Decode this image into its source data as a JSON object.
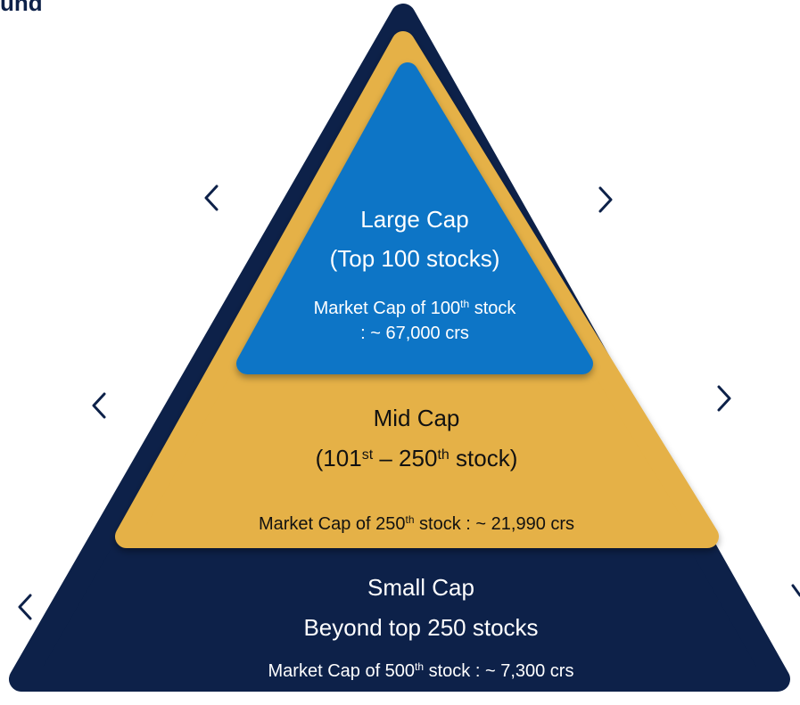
{
  "title": "und",
  "tiers": [
    {
      "lines": [
        [
          {
            "text": "Large Cap"
          }
        ],
        [
          {
            "text": "(Top 100 stocks)"
          }
        ],
        [
          {
            "text": "Market Cap of 100"
          },
          {
            "sup": "th"
          },
          {
            "text": " stock"
          }
        ],
        [
          {
            "text": ": ~ 67,000 crs"
          }
        ]
      ]
    },
    {
      "lines": [
        [
          {
            "text": "Mid Cap"
          }
        ],
        [
          {
            "text": "(101"
          },
          {
            "sup": "st"
          },
          {
            "text": " – 250"
          },
          {
            "sup": "th"
          },
          {
            "text": " stock)"
          }
        ],
        [
          {
            "text": "Market Cap of 250"
          },
          {
            "sup": "th"
          },
          {
            "text": " stock : ~ 21,990 crs"
          }
        ]
      ]
    },
    {
      "lines": [
        [
          {
            "text": "Small Cap"
          }
        ],
        [
          {
            "text": "Beyond top 250 stocks"
          }
        ],
        [
          {
            "text": "Market Cap of 500"
          },
          {
            "sup": "th"
          },
          {
            "text": " stock : ~ 7,300 crs"
          }
        ]
      ]
    }
  ]
}
